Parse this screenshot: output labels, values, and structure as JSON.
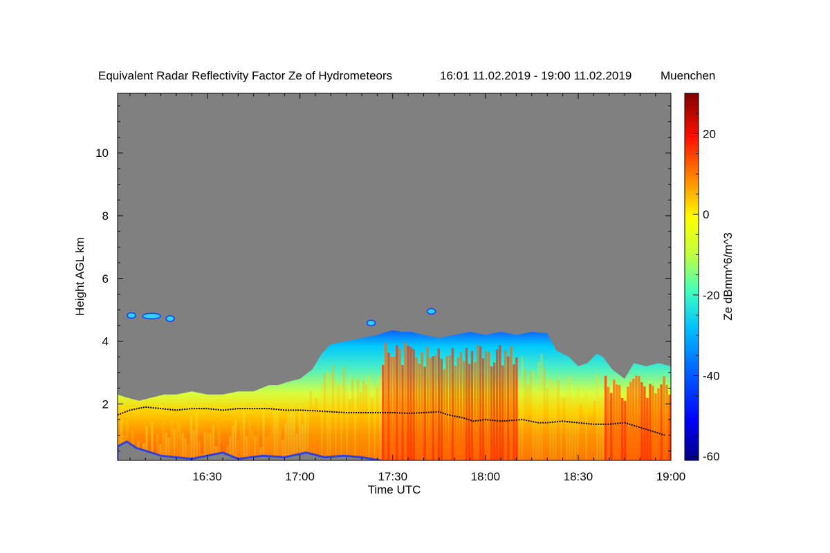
{
  "chart_data": {
    "type": "heatmap",
    "title": "Equivalent Radar Reflectivity Factor Ze of Hydrometeors",
    "time_span": "16:01 11.02.2019 - 19:00 11.02.2019",
    "location": "Muenchen",
    "xlabel": "Time UTC",
    "ylabel": "Height AGL km",
    "xlim_min": [
      961,
      1140
    ],
    "ylim_km": [
      0.2,
      11.9
    ],
    "x_ticks": [
      {
        "min": 990,
        "label": "16:30"
      },
      {
        "min": 1020,
        "label": "17:00"
      },
      {
        "min": 1050,
        "label": "17:30"
      },
      {
        "min": 1080,
        "label": "18:00"
      },
      {
        "min": 1110,
        "label": "18:30"
      },
      {
        "min": 1140,
        "label": "19:00"
      }
    ],
    "y_ticks": [
      {
        "km": 2,
        "label": "2"
      },
      {
        "km": 4,
        "label": "4"
      },
      {
        "km": 6,
        "label": "6"
      },
      {
        "km": 8,
        "label": "8"
      },
      {
        "km": 10,
        "label": "10"
      }
    ],
    "colorbar": {
      "label": "Ze dBmm^6/m^3",
      "range": [
        -61,
        30
      ],
      "ticks": [
        {
          "value": 20,
          "label": "20"
        },
        {
          "value": 0,
          "label": "0"
        },
        {
          "value": -20,
          "label": "-20"
        },
        {
          "value": -40,
          "label": "-40"
        },
        {
          "value": -60,
          "label": "-60"
        }
      ]
    },
    "echo_top_km": [
      [
        961,
        2.3
      ],
      [
        964,
        2.2
      ],
      [
        968,
        2.1
      ],
      [
        972,
        2.2
      ],
      [
        976,
        2.3
      ],
      [
        980,
        2.3
      ],
      [
        985,
        2.4
      ],
      [
        990,
        2.3
      ],
      [
        995,
        2.3
      ],
      [
        1000,
        2.4
      ],
      [
        1005,
        2.4
      ],
      [
        1010,
        2.6
      ],
      [
        1013,
        2.6
      ],
      [
        1016,
        2.7
      ],
      [
        1020,
        2.8
      ],
      [
        1024,
        3.1
      ],
      [
        1027,
        3.6
      ],
      [
        1030,
        3.9
      ],
      [
        1035,
        4.0
      ],
      [
        1040,
        4.1
      ],
      [
        1045,
        4.2
      ],
      [
        1048,
        4.3
      ],
      [
        1050,
        4.35
      ],
      [
        1053,
        4.3
      ],
      [
        1056,
        4.3
      ],
      [
        1060,
        4.2
      ],
      [
        1065,
        4.1
      ],
      [
        1070,
        4.2
      ],
      [
        1075,
        4.3
      ],
      [
        1080,
        4.2
      ],
      [
        1085,
        4.3
      ],
      [
        1090,
        4.2
      ],
      [
        1095,
        4.3
      ],
      [
        1100,
        4.25
      ],
      [
        1103,
        3.7
      ],
      [
        1107,
        3.5
      ],
      [
        1110,
        3.2
      ],
      [
        1113,
        3.3
      ],
      [
        1116,
        3.6
      ],
      [
        1118,
        3.5
      ],
      [
        1121,
        3.1
      ],
      [
        1125,
        2.8
      ],
      [
        1128,
        3.3
      ],
      [
        1132,
        3.2
      ],
      [
        1136,
        3.3
      ],
      [
        1140,
        3.2
      ]
    ],
    "cloud_base_km": [
      [
        961,
        1.65
      ],
      [
        965,
        1.8
      ],
      [
        970,
        1.9
      ],
      [
        975,
        1.85
      ],
      [
        980,
        1.8
      ],
      [
        985,
        1.85
      ],
      [
        990,
        1.85
      ],
      [
        995,
        1.8
      ],
      [
        1000,
        1.85
      ],
      [
        1005,
        1.85
      ],
      [
        1010,
        1.85
      ],
      [
        1015,
        1.8
      ],
      [
        1020,
        1.8
      ],
      [
        1025,
        1.78
      ],
      [
        1030,
        1.75
      ],
      [
        1035,
        1.72
      ],
      [
        1040,
        1.72
      ],
      [
        1045,
        1.72
      ],
      [
        1050,
        1.72
      ],
      [
        1055,
        1.7
      ],
      [
        1060,
        1.72
      ],
      [
        1065,
        1.75
      ],
      [
        1068,
        1.65
      ],
      [
        1073,
        1.55
      ],
      [
        1076,
        1.45
      ],
      [
        1080,
        1.5
      ],
      [
        1085,
        1.45
      ],
      [
        1092,
        1.5
      ],
      [
        1097,
        1.4
      ],
      [
        1100,
        1.4
      ],
      [
        1105,
        1.45
      ],
      [
        1110,
        1.4
      ],
      [
        1115,
        1.35
      ],
      [
        1120,
        1.35
      ],
      [
        1125,
        1.4
      ],
      [
        1130,
        1.25
      ],
      [
        1135,
        1.1
      ],
      [
        1138,
        1.0
      ]
    ],
    "elevated_echo_patches": [
      {
        "t_min": 965.5,
        "h_km": 4.82
      },
      {
        "t_min": 972,
        "h_km": 4.8
      },
      {
        "t_min": 978,
        "h_km": 4.72
      },
      {
        "t_min": 1043,
        "h_km": 4.58
      },
      {
        "t_min": 1062.5,
        "h_km": 4.95
      }
    ],
    "colors": {
      "no_signal": "#808080",
      "colormap": [
        "#000080",
        "#0000ff",
        "#0080ff",
        "#00ffff",
        "#80ff80",
        "#ffff00",
        "#ff8000",
        "#ff0000",
        "#800000"
      ]
    }
  }
}
